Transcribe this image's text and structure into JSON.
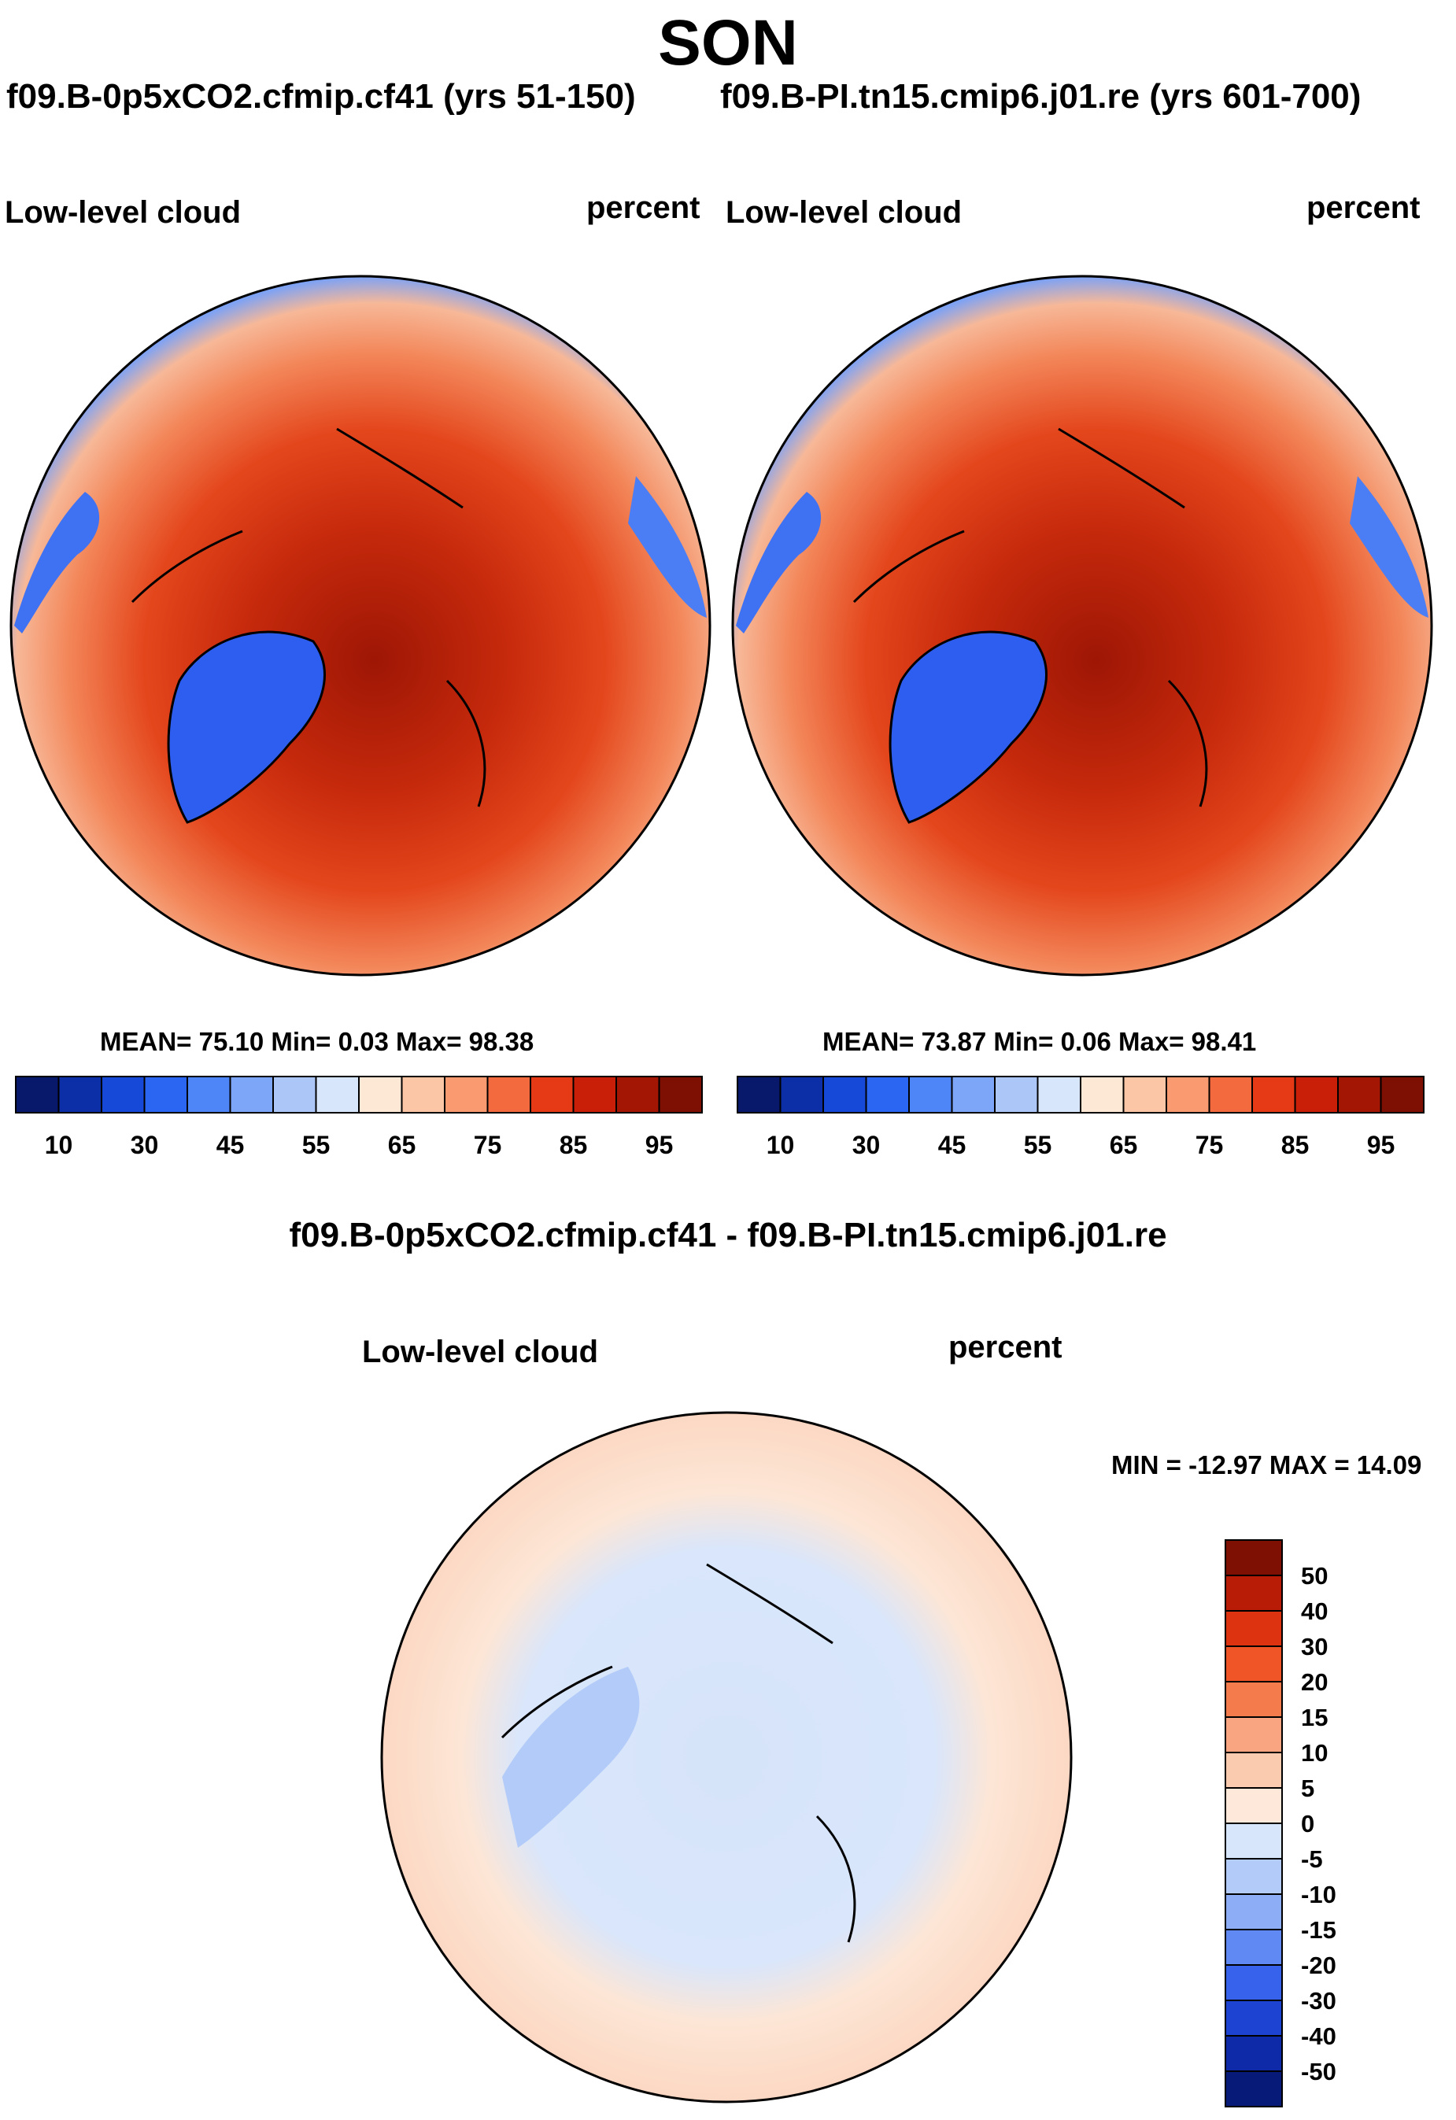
{
  "header": {
    "season": "SON",
    "case1": "f09.B-0p5xCO2.cfmip.cf41 (yrs 51-150)",
    "case2": "f09.B-PI.tn15.cmip6.j01.re (yrs 601-700)"
  },
  "panels": [
    {
      "variable": "Low-level cloud",
      "units": "percent",
      "stats": "MEAN=  75.10  Min=   0.03  Max=  98.38"
    },
    {
      "variable": "Low-level cloud",
      "units": "percent",
      "stats": "MEAN=  73.87  Min=   0.06  Max=  98.41"
    }
  ],
  "colorbar_top": {
    "colors": [
      "#08196b",
      "#0c2fa8",
      "#1649d8",
      "#2b66f2",
      "#4f86f7",
      "#7ea6f8",
      "#adc6f8",
      "#d8e6fb",
      "#fde7d5",
      "#fbc6a6",
      "#f99a70",
      "#f36a3e",
      "#e63a16",
      "#c91e08",
      "#a31604",
      "#7d1002"
    ],
    "labels": [
      "10",
      "30",
      "45",
      "55",
      "65",
      "75",
      "85",
      "95"
    ]
  },
  "difference": {
    "title": "f09.B-0p5xCO2.cfmip.cf41 - f09.B-PI.tn15.cmip6.j01.re",
    "variable": "Low-level cloud",
    "units": "percent",
    "stats": "MIN = -12.97 MAX =  14.09",
    "colors": [
      "#7d1002",
      "#b81c06",
      "#dd3311",
      "#ef5526",
      "#f47b4b",
      "#f9a582",
      "#fbcbb0",
      "#fde8d9",
      "#d7e6fb",
      "#b3cbf8",
      "#8daef6",
      "#6089f4",
      "#3763ec",
      "#1d43d2",
      "#0f2aa8",
      "#071a78"
    ],
    "labels": [
      "50",
      "40",
      "30",
      "20",
      "15",
      "10",
      "5",
      "0",
      "-5",
      "-10",
      "-15",
      "-20",
      "-30",
      "-40",
      "-50"
    ]
  }
}
